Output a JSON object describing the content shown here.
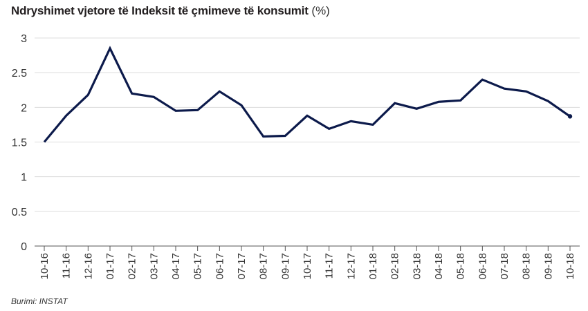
{
  "title": "Ndryshimet vjetore të Indeksit të çmimeve të konsumit",
  "title_unit": "(%)",
  "source": "Burimi: INSTAT",
  "chart_data": {
    "type": "line",
    "title": "Ndryshimet vjetore të Indeksit të çmimeve të konsumit (%)",
    "xlabel": "",
    "ylabel": "",
    "categories": [
      "10-16",
      "11-16",
      "12-16",
      "01-17",
      "02-17",
      "03-17",
      "04-17",
      "05-17",
      "06-17",
      "07-17",
      "08-17",
      "09-17",
      "10-17",
      "11-17",
      "12-17",
      "01-18",
      "02-18",
      "03-18",
      "04-18",
      "05-18",
      "06-18",
      "07-18",
      "08-18",
      "09-18",
      "10-18"
    ],
    "series": [
      {
        "values": [
          1.5,
          1.88,
          2.18,
          2.85,
          2.2,
          2.15,
          1.95,
          1.96,
          2.23,
          2.03,
          1.58,
          1.59,
          1.88,
          1.69,
          1.8,
          1.75,
          2.06,
          1.98,
          2.08,
          2.1,
          2.4,
          2.27,
          2.23,
          2.09,
          1.87
        ],
        "color": "#0c1a4b"
      }
    ],
    "ylim": [
      0,
      3
    ],
    "yticks": [
      "0",
      "0.5",
      "1",
      "1.5",
      "2",
      "2.5",
      "3"
    ],
    "grid": true,
    "last_point_marker": true
  }
}
